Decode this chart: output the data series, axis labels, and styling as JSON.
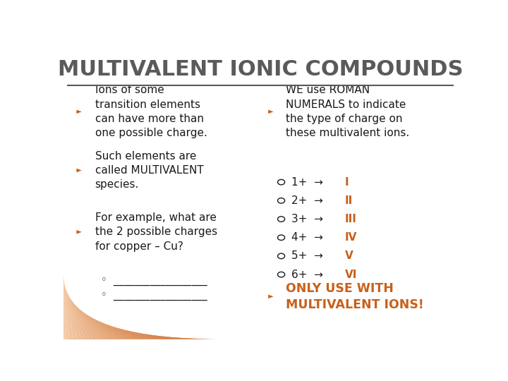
{
  "title": "MULTIVALENT IONIC COMPOUNDS",
  "title_color": "#5a5a5a",
  "title_underline_color": "#5a5a5a",
  "background_color": "#ffffff",
  "bullet_color": "#c8601a",
  "left_bullets": [
    "Ions of some\ntransition elements\ncan have more than\none possible charge.",
    "Such elements are\ncalled MULTIVALENT\nspecies.",
    "For example, what are\nthe 2 possible charges\nfor copper – Cu?"
  ],
  "left_sub_bullets": [
    "◦  __________________",
    "◦  __________________"
  ],
  "right_intro": "WE use ROMAN\nNUMERALS to indicate\nthe type of charge on\nthese multivalent ions.",
  "roman_rows": [
    {
      "black": "1+  →  ",
      "orange": "I"
    },
    {
      "black": "2+  →  ",
      "orange": "II"
    },
    {
      "black": "3+  →  ",
      "orange": "III"
    },
    {
      "black": "4+  →  ",
      "orange": "IV"
    },
    {
      "black": "5+  →  ",
      "orange": "V"
    },
    {
      "black": "6+  →  ",
      "orange": "VI"
    }
  ],
  "right_footer": "ONLY USE WITH\nMULTIVALENT IONS!",
  "text_color": "#1a1a1a",
  "roman_black_color": "#1a1a1a",
  "roman_orange_color": "#c8601a",
  "footer_color": "#c8601a",
  "figsize": [
    7.2,
    5.4
  ],
  "dpi": 100
}
